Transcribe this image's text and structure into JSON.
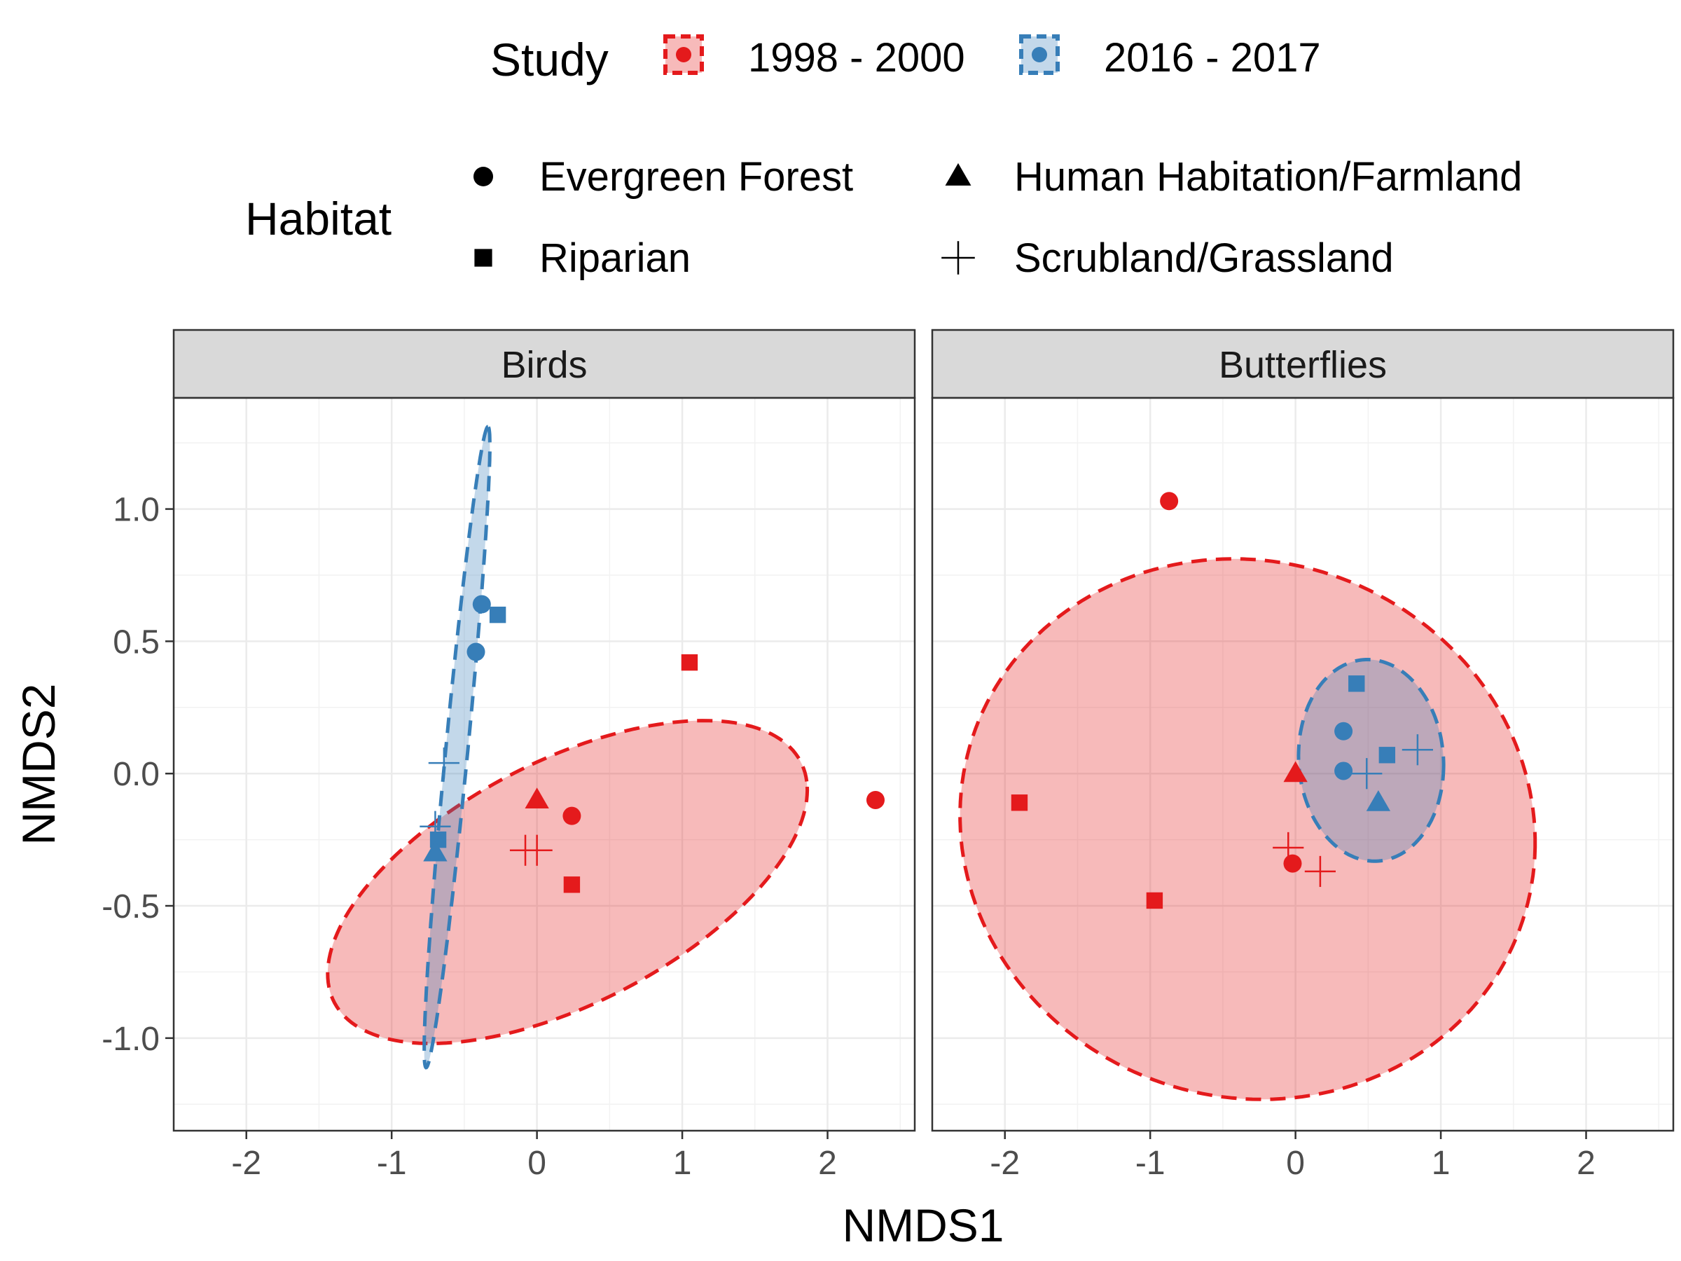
{
  "chart_data": {
    "type": "scatter",
    "xlabel": "NMDS1",
    "ylabel": "NMDS2",
    "xlim": [
      -2.5,
      2.6
    ],
    "ylim": [
      -1.35,
      1.42
    ],
    "x_ticks": [
      -2,
      -1,
      0,
      1,
      2
    ],
    "y_ticks": [
      -1.0,
      -0.5,
      0.0,
      0.5,
      1.0
    ],
    "x_tick_labels": [
      "-2",
      "-1",
      "0",
      "1",
      "2"
    ],
    "y_tick_labels": [
      "-1.0",
      "-0.5",
      "0.0",
      "0.5",
      "1.0"
    ],
    "grid": true,
    "legend_placement": "top",
    "legends": {
      "study": {
        "title": "Study",
        "entries": [
          {
            "label": "1998 - 2000",
            "color": "#e41a1c"
          },
          {
            "label": "2016 - 2017",
            "color": "#377eb8"
          }
        ]
      },
      "habitat": {
        "title": "Habitat",
        "entries": [
          {
            "label": "Evergreen Forest",
            "shape": "circle"
          },
          {
            "label": "Human Habitation/Farmland",
            "shape": "triangle"
          },
          {
            "label": "Riparian",
            "shape": "square"
          },
          {
            "label": "Scrubland/Grassland",
            "shape": "plus"
          }
        ]
      }
    },
    "panels": [
      {
        "title": "Birds",
        "points": [
          {
            "study": "1998 - 2000",
            "habitat": "Riparian",
            "x": 1.05,
            "y": 0.42
          },
          {
            "study": "1998 - 2000",
            "habitat": "Evergreen Forest",
            "x": 2.33,
            "y": -0.1
          },
          {
            "study": "1998 - 2000",
            "habitat": "Human Habitation/Farmland",
            "x": 0.0,
            "y": -0.1
          },
          {
            "study": "1998 - 2000",
            "habitat": "Evergreen Forest",
            "x": 0.24,
            "y": -0.16
          },
          {
            "study": "1998 - 2000",
            "habitat": "Scrubland/Grassland",
            "x": -0.08,
            "y": -0.29
          },
          {
            "study": "1998 - 2000",
            "habitat": "Scrubland/Grassland",
            "x": 0.0,
            "y": -0.29
          },
          {
            "study": "1998 - 2000",
            "habitat": "Riparian",
            "x": 0.24,
            "y": -0.42
          },
          {
            "study": "2016 - 2017",
            "habitat": "Evergreen Forest",
            "x": -0.38,
            "y": 0.64
          },
          {
            "study": "2016 - 2017",
            "habitat": "Riparian",
            "x": -0.27,
            "y": 0.6
          },
          {
            "study": "2016 - 2017",
            "habitat": "Evergreen Forest",
            "x": -0.42,
            "y": 0.46
          },
          {
            "study": "2016 - 2017",
            "habitat": "Scrubland/Grassland",
            "x": -0.64,
            "y": 0.04
          },
          {
            "study": "2016 - 2017",
            "habitat": "Riparian",
            "x": -0.68,
            "y": -0.25
          },
          {
            "study": "2016 - 2017",
            "habitat": "Human Habitation/Farmland",
            "x": -0.7,
            "y": -0.3
          },
          {
            "study": "2016 - 2017",
            "habitat": "Scrubland/Grassland",
            "x": -0.7,
            "y": -0.2
          }
        ],
        "ellipses": [
          {
            "study": "1998 - 2000",
            "cx": 0.21,
            "cy": -0.41,
            "rx": 1.69,
            "ry": 0.49,
            "angle_deg": 13
          },
          {
            "study": "2016 - 2017",
            "cx": -0.55,
            "cy": 0.1,
            "rx": 1.23,
            "ry": 0.075,
            "angle_deg": 80
          }
        ]
      },
      {
        "title": "Butterflies",
        "points": [
          {
            "study": "1998 - 2000",
            "habitat": "Evergreen Forest",
            "x": -0.87,
            "y": 1.03
          },
          {
            "study": "1998 - 2000",
            "habitat": "Riparian",
            "x": -1.9,
            "y": -0.11
          },
          {
            "study": "1998 - 2000",
            "habitat": "Riparian",
            "x": -0.97,
            "y": -0.48
          },
          {
            "study": "1998 - 2000",
            "habitat": "Human Habitation/Farmland",
            "x": 0.0,
            "y": 0.0
          },
          {
            "study": "1998 - 2000",
            "habitat": "Scrubland/Grassland",
            "x": -0.05,
            "y": -0.28
          },
          {
            "study": "1998 - 2000",
            "habitat": "Evergreen Forest",
            "x": -0.02,
            "y": -0.34
          },
          {
            "study": "1998 - 2000",
            "habitat": "Scrubland/Grassland",
            "x": 0.17,
            "y": -0.37
          },
          {
            "study": "2016 - 2017",
            "habitat": "Riparian",
            "x": 0.42,
            "y": 0.34
          },
          {
            "study": "2016 - 2017",
            "habitat": "Evergreen Forest",
            "x": 0.33,
            "y": 0.16
          },
          {
            "study": "2016 - 2017",
            "habitat": "Evergreen Forest",
            "x": 0.33,
            "y": 0.01
          },
          {
            "study": "2016 - 2017",
            "habitat": "Scrubland/Grassland",
            "x": 0.49,
            "y": 0.0
          },
          {
            "study": "2016 - 2017",
            "habitat": "Riparian",
            "x": 0.63,
            "y": 0.07
          },
          {
            "study": "2016 - 2017",
            "habitat": "Scrubland/Grassland",
            "x": 0.84,
            "y": 0.09
          },
          {
            "study": "2016 - 2017",
            "habitat": "Human Habitation/Farmland",
            "x": 0.57,
            "y": -0.11
          }
        ],
        "ellipses": [
          {
            "study": "1998 - 2000",
            "cx": -0.33,
            "cy": -0.21,
            "rx": 1.98,
            "ry": 1.02,
            "angle_deg": -2
          },
          {
            "study": "2016 - 2017",
            "cx": 0.52,
            "cy": 0.05,
            "rx": 0.5,
            "ry": 0.38,
            "angle_deg": -5
          }
        ]
      }
    ]
  }
}
